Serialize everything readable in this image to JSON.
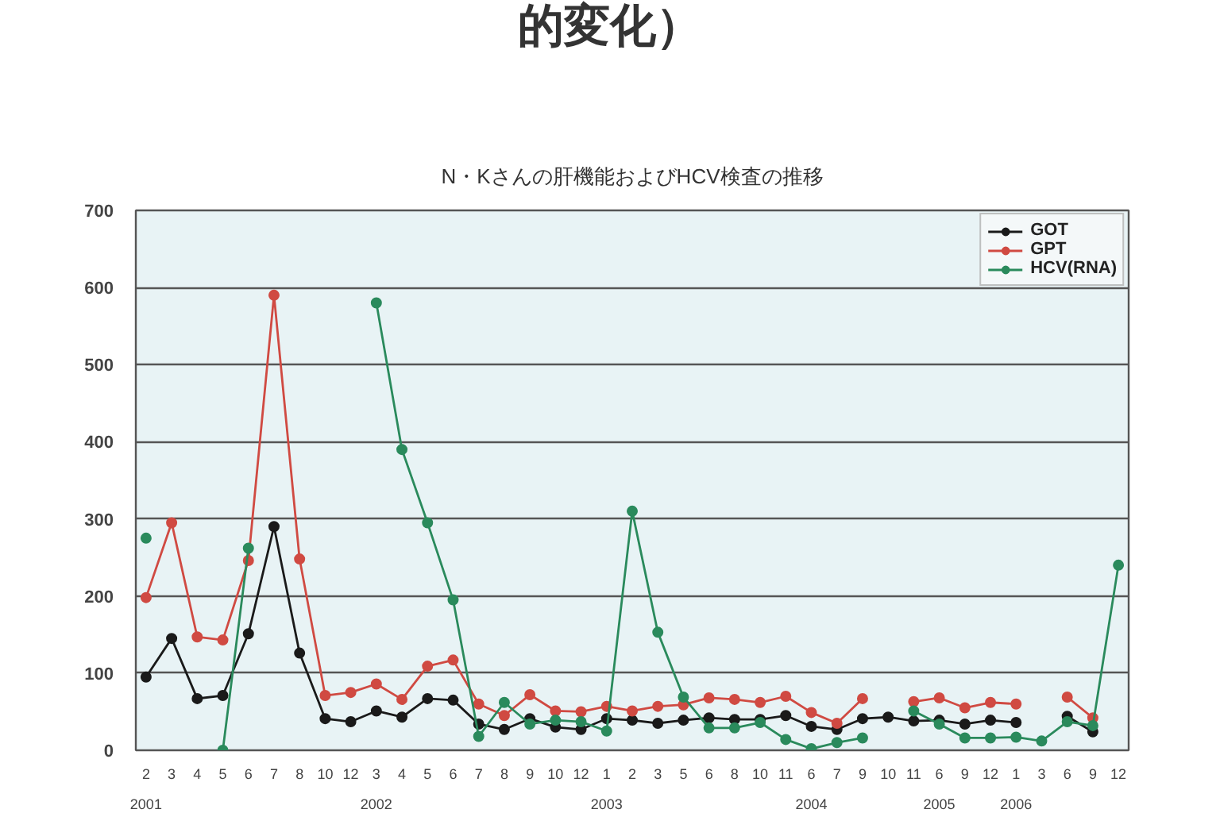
{
  "chart_data": {
    "type": "line",
    "title": "N・Kさんの肝機能およびHCV検査の推移",
    "annotations": [
      "的変化）"
    ],
    "categories": [
      "2\n2001",
      "3",
      "4",
      "5",
      "6",
      "7",
      "8",
      "10",
      "12",
      "3\n2002",
      "4",
      "5",
      "6",
      "7",
      "8",
      "9",
      "10",
      "12",
      "1\n2003",
      "2",
      "3",
      "5",
      "6",
      "8",
      "10",
      "11",
      "6\n2004",
      "7",
      "9",
      "10",
      "11",
      "6\n2005",
      "9",
      "12",
      "1\n2006",
      "3",
      "6",
      "9",
      "12"
    ],
    "series": [
      {
        "name": "GOT",
        "color": "#1a1a1a",
        "values": [
          95,
          145,
          67,
          71,
          151,
          290,
          126,
          41,
          37,
          51,
          43,
          67,
          65,
          34,
          27,
          41,
          30,
          27,
          41,
          39,
          35,
          39,
          42,
          40,
          40,
          45,
          31,
          27,
          41,
          43,
          38,
          39,
          34,
          39,
          36,
          null,
          44,
          24,
          null
        ]
      },
      {
        "name": "GPT",
        "color": "#d04a42",
        "values": [
          198,
          295,
          147,
          143,
          246,
          590,
          248,
          71,
          75,
          86,
          66,
          109,
          117,
          60,
          45,
          72,
          51,
          50,
          57,
          51,
          57,
          59,
          68,
          66,
          62,
          70,
          49,
          35,
          67,
          null,
          63,
          68,
          55,
          62,
          60,
          null,
          69,
          42,
          null
        ]
      },
      {
        "name": "HCV(RNA)",
        "color": "#2a8a5c",
        "values": [
          275,
          null,
          null,
          0,
          262,
          null,
          null,
          null,
          null,
          580,
          390,
          295,
          195,
          18,
          62,
          34,
          39,
          37,
          25,
          310,
          153,
          69,
          29,
          29,
          36,
          14,
          2,
          10,
          16,
          null,
          51,
          34,
          16,
          16,
          17,
          12,
          37,
          32,
          240
        ]
      }
    ],
    "ylim": [
      0,
      700
    ],
    "yticks": [
      0,
      100,
      200,
      300,
      400,
      500,
      600,
      700
    ],
    "grid": "y",
    "legend": "top right",
    "marker": "circle",
    "line_style": "solid"
  }
}
